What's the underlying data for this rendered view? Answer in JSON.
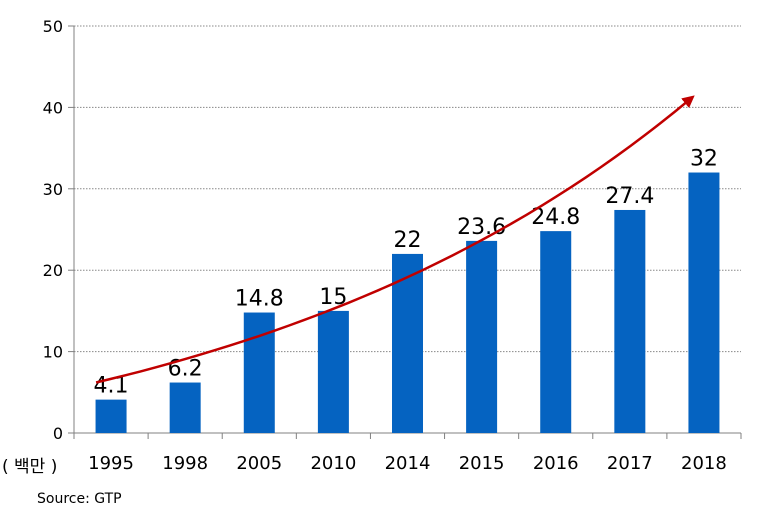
{
  "chart_data": {
    "type": "bar",
    "categories": [
      "1995",
      "1998",
      "2005",
      "2010",
      "2014",
      "2015",
      "2016",
      "2017",
      "2018"
    ],
    "values": [
      4.1,
      6.2,
      14.8,
      15,
      22,
      23.6,
      24.8,
      27.4,
      32
    ],
    "data_labels": [
      "4.1",
      "6.2",
      "14.8",
      "15",
      "22",
      "23.6",
      "24.8",
      "27.4",
      "32"
    ],
    "y_ticks": [
      "0",
      "10",
      "20",
      "30",
      "40",
      "50"
    ],
    "ylim": [
      0,
      50
    ],
    "ylabel": "( 백만 )",
    "grid": "horizontal dotted",
    "trend_arrow": true,
    "colors": {
      "bar": "#0563C1",
      "arrow": "#C00000",
      "grid": "#888888",
      "axis": "#808080"
    }
  },
  "source": "Source: GTP"
}
